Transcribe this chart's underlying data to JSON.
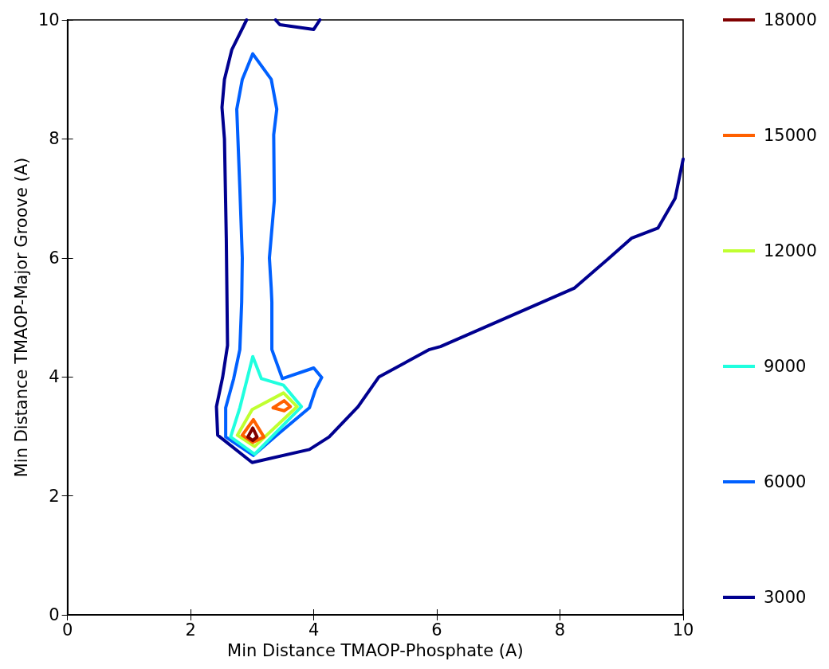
{
  "chart_data": {
    "type": "line",
    "xlabel": "Min Distance TMAOP-Phosphate (A)",
    "ylabel": "Min Distance TMAOP-Major Groove (A)",
    "xlim": [
      0,
      10
    ],
    "ylim": [
      0,
      10
    ],
    "xticks": [
      0,
      2,
      4,
      6,
      8,
      10
    ],
    "yticks": [
      0,
      2,
      4,
      6,
      8,
      10
    ],
    "grid": false,
    "legend": "right",
    "marker": "none",
    "line_style": "solid",
    "series": [
      {
        "name": "3000",
        "color": "#00008f",
        "x": [
          2.91,
          2.67,
          2.55,
          2.51,
          2.55,
          2.58,
          2.6,
          2.52,
          2.42,
          2.44,
          3.0,
          3.93,
          4.25,
          4.72,
          5.06,
          5.88,
          6.06,
          8.23,
          8.78,
          9.16,
          9.59,
          9.87,
          10,
          null,
          3.38,
          3.45,
          4.0,
          4.1
        ],
        "values": [
          10,
          9.5,
          9.0,
          8.53,
          8.0,
          6.33,
          4.53,
          3.99,
          3.5,
          3.02,
          2.56,
          2.78,
          2.99,
          3.5,
          4.0,
          4.46,
          4.51,
          5.49,
          5.98,
          6.33,
          6.5,
          7.0,
          7.66,
          null,
          10,
          9.92,
          9.84,
          10
        ]
      },
      {
        "name": "6000",
        "color": "#0060ff",
        "x": [
          3.01,
          3.31,
          3.4,
          3.35,
          3.36,
          3.28,
          3.31,
          3.32,
          3.32,
          3.49,
          4.0,
          4.13,
          4.03,
          3.93,
          3.41,
          3.02,
          null,
          3.01,
          2.84,
          2.75,
          2.8,
          2.84,
          2.83,
          2.8,
          2.7,
          2.57,
          2.57,
          3.02
        ],
        "values": [
          9.43,
          9.0,
          8.5,
          8.07,
          6.96,
          6.0,
          5.49,
          5.26,
          4.46,
          3.97,
          4.15,
          3.99,
          3.79,
          3.48,
          3.03,
          2.68,
          null,
          9.43,
          9.0,
          8.5,
          7.17,
          6.0,
          5.26,
          4.46,
          3.97,
          3.48,
          2.99,
          2.68
        ]
      },
      {
        "name": "9000",
        "color": "#20ffdf",
        "x": [
          3.01,
          3.15,
          3.51,
          3.8,
          3.04,
          null,
          3.01,
          2.8,
          2.65,
          3.04
        ],
        "values": [
          4.34,
          3.97,
          3.86,
          3.5,
          2.7,
          null,
          4.34,
          3.48,
          2.99,
          2.7
        ]
      },
      {
        "name": "12000",
        "color": "#c0ff30",
        "x": [
          2.76,
          3.0,
          3.51,
          3.73,
          null,
          2.76,
          3.04,
          3.73
        ],
        "values": [
          3.02,
          3.45,
          3.73,
          3.5,
          null,
          3.02,
          2.83,
          3.5
        ]
      },
      {
        "name": "15000",
        "color": "#ff6000",
        "x": [
          2.84,
          3.02,
          3.19,
          null,
          2.84,
          3.01,
          3.19,
          null,
          3.34,
          3.52,
          3.62,
          null,
          3.34,
          3.52,
          3.62
        ],
        "values": [
          3.02,
          3.28,
          2.99,
          null,
          3.02,
          2.9,
          2.99,
          null,
          3.48,
          3.6,
          3.5,
          null,
          3.48,
          3.43,
          3.5
        ]
      },
      {
        "name": "18000",
        "color": "#800000",
        "x": [
          2.93,
          3.01,
          3.08,
          null,
          2.93,
          3.01,
          3.08
        ],
        "values": [
          2.99,
          3.14,
          2.99,
          null,
          2.99,
          2.93,
          2.99
        ]
      }
    ]
  }
}
